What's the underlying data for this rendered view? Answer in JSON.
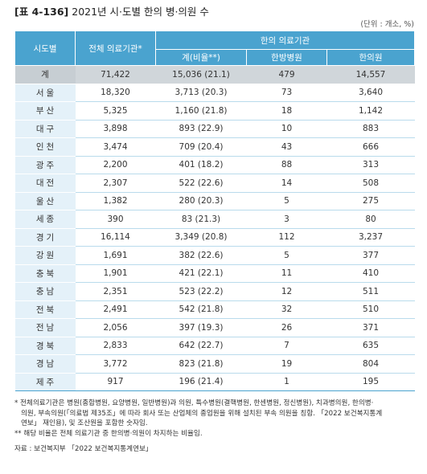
{
  "title": {
    "number": "[표 4-136]",
    "text": "2021년 시·도별 한의 병·의원 수"
  },
  "unit": "(단위 : 개소, %)",
  "table": {
    "headers": {
      "region": "시도별",
      "total": "전체 의료기관*",
      "group": "한의 의료기관",
      "sub": [
        "계(비율**)",
        "한방병원",
        "한의원"
      ]
    },
    "rows": [
      {
        "region": "계",
        "total": "71,422",
        "sum": "15,036 (21.1)",
        "hospital": "479",
        "clinic": "14,557"
      },
      {
        "region": "서울",
        "total": "18,320",
        "sum": "3,713 (20.3)",
        "hospital": "73",
        "clinic": "3,640"
      },
      {
        "region": "부산",
        "total": "5,325",
        "sum": "1,160 (21.8)",
        "hospital": "18",
        "clinic": "1,142"
      },
      {
        "region": "대구",
        "total": "3,898",
        "sum": "893 (22.9)",
        "hospital": "10",
        "clinic": "883"
      },
      {
        "region": "인천",
        "total": "3,474",
        "sum": "709 (20.4)",
        "hospital": "43",
        "clinic": "666"
      },
      {
        "region": "광주",
        "total": "2,200",
        "sum": "401 (18.2)",
        "hospital": "88",
        "clinic": "313"
      },
      {
        "region": "대전",
        "total": "2,307",
        "sum": "522 (22.6)",
        "hospital": "14",
        "clinic": "508"
      },
      {
        "region": "울산",
        "total": "1,382",
        "sum": "280 (20.3)",
        "hospital": "5",
        "clinic": "275"
      },
      {
        "region": "세종",
        "total": "390",
        "sum": "83 (21.3)",
        "hospital": "3",
        "clinic": "80"
      },
      {
        "region": "경기",
        "total": "16,114",
        "sum": "3,349 (20.8)",
        "hospital": "112",
        "clinic": "3,237"
      },
      {
        "region": "강원",
        "total": "1,691",
        "sum": "382 (22.6)",
        "hospital": "5",
        "clinic": "377"
      },
      {
        "region": "충북",
        "total": "1,901",
        "sum": "421 (22.1)",
        "hospital": "11",
        "clinic": "410"
      },
      {
        "region": "충남",
        "total": "2,351",
        "sum": "523 (22.2)",
        "hospital": "12",
        "clinic": "511"
      },
      {
        "region": "전북",
        "total": "2,491",
        "sum": "542 (21.8)",
        "hospital": "32",
        "clinic": "510"
      },
      {
        "region": "전남",
        "total": "2,056",
        "sum": "397 (19.3)",
        "hospital": "26",
        "clinic": "371"
      },
      {
        "region": "경북",
        "total": "2,833",
        "sum": "642 (22.7)",
        "hospital": "7",
        "clinic": "635"
      },
      {
        "region": "경남",
        "total": "3,772",
        "sum": "823 (21.8)",
        "hospital": "19",
        "clinic": "804"
      },
      {
        "region": "제주",
        "total": "917",
        "sum": "196 (21.4)",
        "hospital": "1",
        "clinic": "195"
      }
    ]
  },
  "notes": {
    "note1_line1": "* 전체의료기관은 병원(종합병원, 요양병원, 일반병원)과 의원, 특수병원(결핵병원, 한센병원, 정신병원), 치과병의원, 한의병·",
    "note1_line2": "의원, 부속의원(「의료법 제35조」에 따라 회사 또는 산업체의 종업원을 위해 설치된 부속 의원을 칭함. 「2022 보건복지통계",
    "note1_line3": "연보」 재인용), 및 조산원을 포함한 숫자임.",
    "note2": "** 해당 비율은 전체 의료기관 중 한의병·의원이 차지하는 비율임.",
    "source": "자료 : 보건복지부 「2022 보건복지통계연보」"
  },
  "colors": {
    "header": "#4aa3cf",
    "region_cell": "#e4f1f9",
    "total_row": "#d0d6da",
    "row_divider": "#b9dbec"
  }
}
